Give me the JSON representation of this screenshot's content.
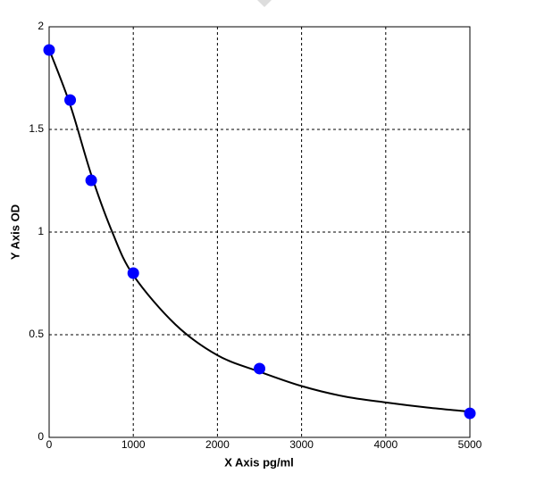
{
  "chart_data": {
    "type": "scatter",
    "x_label": "X Axis pg/ml",
    "y_label": "Y Axis OD",
    "points": {
      "x": [
        0,
        250,
        500,
        1000,
        2500,
        5000
      ],
      "values": [
        1.887,
        1.643,
        1.252,
        0.8,
        0.335,
        0.117
      ],
      "color": "#0000ff"
    },
    "curve": {
      "x": [
        0,
        250,
        500,
        750,
        1000,
        1500,
        2000,
        2500,
        3000,
        3500,
        4000,
        4500,
        5000
      ],
      "values": [
        1.89,
        1.62,
        1.28,
        1.0,
        0.79,
        0.55,
        0.4,
        0.32,
        0.25,
        0.2,
        0.17,
        0.145,
        0.125
      ],
      "color": "#000000"
    },
    "xlim": [
      0,
      5000
    ],
    "ylim": [
      0,
      2
    ],
    "xticks": [
      0,
      1000,
      2000,
      3000,
      4000,
      5000
    ],
    "yticks": [
      0,
      0.5,
      1,
      1.5,
      2
    ],
    "grid": true
  }
}
